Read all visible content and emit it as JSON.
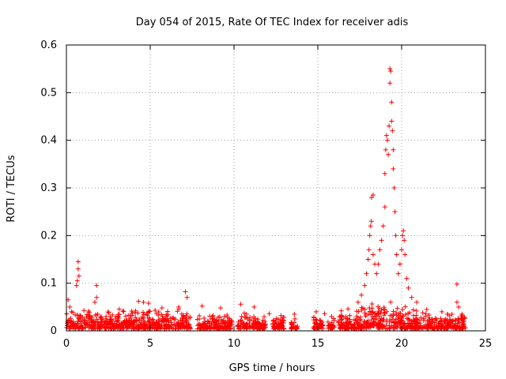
{
  "chart_data": {
    "type": "scatter",
    "title": "Day 054 of 2015, Rate Of TEC Index for receiver adis",
    "xlabel": "GPS time / hours",
    "ylabel": "ROTI / TECUs",
    "xlim": [
      0,
      25
    ],
    "ylim": [
      0,
      0.6
    ],
    "xticks": [
      "0",
      "5",
      "10",
      "15",
      "20",
      "25"
    ],
    "yticks": [
      "0",
      "0.1",
      "0.2",
      "0.3",
      "0.4",
      "0.5",
      "0.6"
    ],
    "grid": true,
    "marker": "+",
    "series_color": "#ff0000",
    "series": [
      {
        "name": "ROTI",
        "points": [
          [
            0.1,
            0.065
          ],
          [
            0.2,
            0.05
          ],
          [
            0.3,
            0.04
          ],
          [
            0.7,
            0.145
          ],
          [
            0.7,
            0.13
          ],
          [
            0.75,
            0.115
          ],
          [
            0.65,
            0.105
          ],
          [
            0.6,
            0.095
          ],
          [
            1.8,
            0.095
          ],
          [
            1.8,
            0.07
          ],
          [
            1.7,
            0.06
          ],
          [
            4.3,
            0.062
          ],
          [
            4.6,
            0.06
          ],
          [
            4.9,
            0.058
          ],
          [
            5.7,
            0.048
          ],
          [
            6.7,
            0.05
          ],
          [
            7.1,
            0.082
          ],
          [
            7.2,
            0.07
          ],
          [
            8.1,
            0.052
          ],
          [
            9.2,
            0.048
          ],
          [
            10.4,
            0.056
          ],
          [
            11.2,
            0.05
          ],
          [
            12.1,
            0.036
          ],
          [
            12.8,
            0.032
          ],
          [
            13.6,
            0.035
          ],
          [
            14.9,
            0.04
          ],
          [
            15.4,
            0.036
          ],
          [
            16.4,
            0.042
          ],
          [
            16.8,
            0.046
          ],
          [
            17.4,
            0.06
          ],
          [
            17.6,
            0.075
          ],
          [
            17.8,
            0.095
          ],
          [
            17.9,
            0.12
          ],
          [
            18.0,
            0.15
          ],
          [
            18.05,
            0.17
          ],
          [
            18.1,
            0.2
          ],
          [
            18.15,
            0.22
          ],
          [
            18.2,
            0.23
          ],
          [
            18.2,
            0.28
          ],
          [
            18.3,
            0.285
          ],
          [
            18.3,
            0.16
          ],
          [
            18.4,
            0.14
          ],
          [
            18.5,
            0.12
          ],
          [
            18.6,
            0.14
          ],
          [
            18.7,
            0.17
          ],
          [
            18.8,
            0.19
          ],
          [
            18.9,
            0.22
          ],
          [
            19.0,
            0.26
          ],
          [
            19.0,
            0.33
          ],
          [
            19.05,
            0.38
          ],
          [
            19.1,
            0.41
          ],
          [
            19.15,
            0.4
          ],
          [
            19.2,
            0.37
          ],
          [
            19.25,
            0.43
          ],
          [
            19.3,
            0.55
          ],
          [
            19.35,
            0.545
          ],
          [
            19.3,
            0.52
          ],
          [
            19.4,
            0.48
          ],
          [
            19.4,
            0.44
          ],
          [
            19.45,
            0.42
          ],
          [
            19.5,
            0.38
          ],
          [
            19.5,
            0.34
          ],
          [
            19.55,
            0.3
          ],
          [
            19.6,
            0.25
          ],
          [
            19.65,
            0.2
          ],
          [
            19.7,
            0.16
          ],
          [
            19.8,
            0.12
          ],
          [
            19.9,
            0.14
          ],
          [
            20.0,
            0.17
          ],
          [
            20.05,
            0.2
          ],
          [
            20.1,
            0.21
          ],
          [
            20.15,
            0.19
          ],
          [
            20.2,
            0.16
          ],
          [
            20.3,
            0.11
          ],
          [
            20.4,
            0.09
          ],
          [
            20.6,
            0.07
          ],
          [
            20.9,
            0.06
          ],
          [
            21.5,
            0.045
          ],
          [
            22.4,
            0.04
          ],
          [
            23.0,
            0.035
          ],
          [
            23.3,
            0.098
          ],
          [
            23.3,
            0.06
          ],
          [
            23.4,
            0.05
          ],
          [
            23.6,
            0.035
          ]
        ]
      }
    ]
  }
}
